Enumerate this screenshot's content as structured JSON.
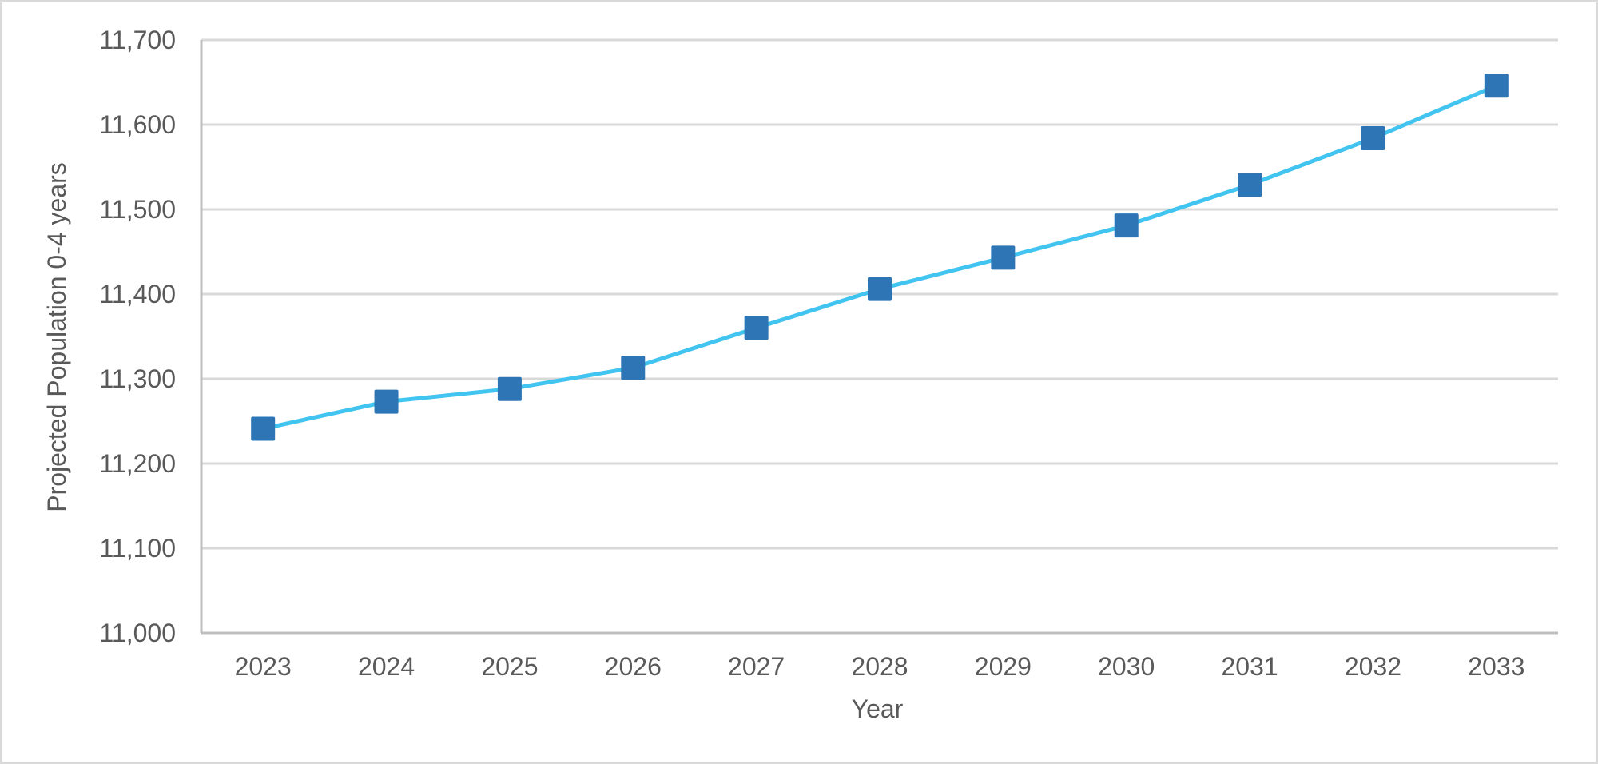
{
  "chart_data": {
    "type": "line",
    "title": "",
    "xlabel": "Year",
    "ylabel": "Projected Population 0-4 years",
    "categories": [
      "2023",
      "2024",
      "2025",
      "2026",
      "2027",
      "2028",
      "2029",
      "2030",
      "2031",
      "2032",
      "2033"
    ],
    "series": [
      {
        "name": "Projected Population 0-4 years",
        "values": [
          11241,
          11273,
          11288,
          11313,
          11360,
          11406,
          11443,
          11481,
          11529,
          11584,
          11646
        ]
      }
    ],
    "ylim": [
      11000,
      11700
    ],
    "yticks": [
      11000,
      11100,
      11200,
      11300,
      11400,
      11500,
      11600,
      11700
    ],
    "ytick_labels": [
      "11,000",
      "11,100",
      "11,200",
      "11,300",
      "11,400",
      "11,500",
      "11,600",
      "11,700"
    ],
    "grid": true,
    "legend": "none",
    "colors": {
      "line": "#41c4f0",
      "marker": "#2e75b6",
      "grid": "#d9d9d9",
      "axis": "#bfbfbf",
      "text": "#595959"
    }
  }
}
